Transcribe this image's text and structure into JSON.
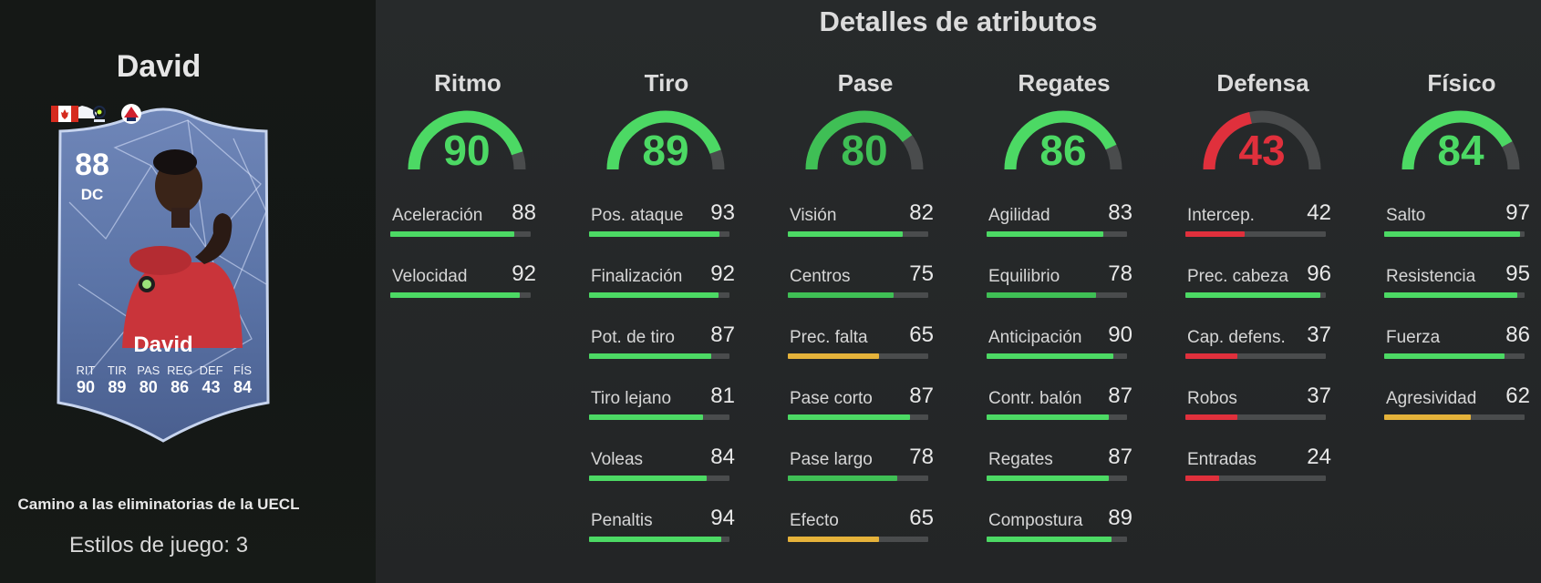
{
  "player": {
    "title": "David",
    "card": {
      "rating": "88",
      "position": "DC",
      "name": "David",
      "stat_labels": [
        "RIT",
        "TIR",
        "PAS",
        "REG",
        "DEF",
        "FÍS"
      ],
      "stat_values": [
        "90",
        "89",
        "80",
        "86",
        "43",
        "84"
      ],
      "nation_icon": "canada-flag-icon",
      "league_icon": "ligue1-icon",
      "club_icon": "lille-crest-icon"
    },
    "campaign": "Camino a las eliminatorias de la UECL",
    "playstyles": "Estilos de juego: 3"
  },
  "details_title": "Detalles de atributos",
  "colors": {
    "high": "#4cd964",
    "high_dark": "#3fbf55",
    "mid": "#e5b23a",
    "low": "#e0303c",
    "track": "#4a4c4d"
  },
  "categories": [
    {
      "key": "ritmo",
      "name": "Ritmo",
      "value": 90,
      "color": "#4cd964",
      "attributes": [
        {
          "name": "Aceleración",
          "value": 88,
          "color": "#4cd964"
        },
        {
          "name": "Velocidad",
          "value": 92,
          "color": "#4cd964"
        }
      ]
    },
    {
      "key": "tiro",
      "name": "Tiro",
      "value": 89,
      "color": "#4cd964",
      "attributes": [
        {
          "name": "Pos. ataque",
          "value": 93,
          "color": "#4cd964"
        },
        {
          "name": "Finalización",
          "value": 92,
          "color": "#4cd964"
        },
        {
          "name": "Pot. de tiro",
          "value": 87,
          "color": "#4cd964"
        },
        {
          "name": "Tiro lejano",
          "value": 81,
          "color": "#4cd964"
        },
        {
          "name": "Voleas",
          "value": 84,
          "color": "#4cd964"
        },
        {
          "name": "Penaltis",
          "value": 94,
          "color": "#4cd964"
        }
      ]
    },
    {
      "key": "pase",
      "name": "Pase",
      "value": 80,
      "color": "#3fbf55",
      "attributes": [
        {
          "name": "Visión",
          "value": 82,
          "color": "#4cd964"
        },
        {
          "name": "Centros",
          "value": 75,
          "color": "#3fbf55"
        },
        {
          "name": "Prec. falta",
          "value": 65,
          "color": "#e5b23a"
        },
        {
          "name": "Pase corto",
          "value": 87,
          "color": "#4cd964"
        },
        {
          "name": "Pase largo",
          "value": 78,
          "color": "#3fbf55"
        },
        {
          "name": "Efecto",
          "value": 65,
          "color": "#e5b23a"
        }
      ]
    },
    {
      "key": "regates",
      "name": "Regates",
      "value": 86,
      "color": "#4cd964",
      "attributes": [
        {
          "name": "Agilidad",
          "value": 83,
          "color": "#4cd964"
        },
        {
          "name": "Equilibrio",
          "value": 78,
          "color": "#3fbf55"
        },
        {
          "name": "Anticipación",
          "value": 90,
          "color": "#4cd964"
        },
        {
          "name": "Contr. balón",
          "value": 87,
          "color": "#4cd964"
        },
        {
          "name": "Regates",
          "value": 87,
          "color": "#4cd964"
        },
        {
          "name": "Compostura",
          "value": 89,
          "color": "#4cd964"
        }
      ]
    },
    {
      "key": "defensa",
      "name": "Defensa",
      "value": 43,
      "color": "#e0303c",
      "attributes": [
        {
          "name": "Intercep.",
          "value": 42,
          "color": "#e0303c"
        },
        {
          "name": "Prec. cabeza",
          "value": 96,
          "color": "#4cd964"
        },
        {
          "name": "Cap. defens.",
          "value": 37,
          "color": "#e0303c"
        },
        {
          "name": "Robos",
          "value": 37,
          "color": "#e0303c"
        },
        {
          "name": "Entradas",
          "value": 24,
          "color": "#e0303c"
        }
      ]
    },
    {
      "key": "fisico",
      "name": "Físico",
      "value": 84,
      "color": "#4cd964",
      "attributes": [
        {
          "name": "Salto",
          "value": 97,
          "color": "#4cd964"
        },
        {
          "name": "Resistencia",
          "value": 95,
          "color": "#4cd964"
        },
        {
          "name": "Fuerza",
          "value": 86,
          "color": "#4cd964"
        },
        {
          "name": "Agresividad",
          "value": 62,
          "color": "#e5b23a"
        }
      ]
    }
  ]
}
